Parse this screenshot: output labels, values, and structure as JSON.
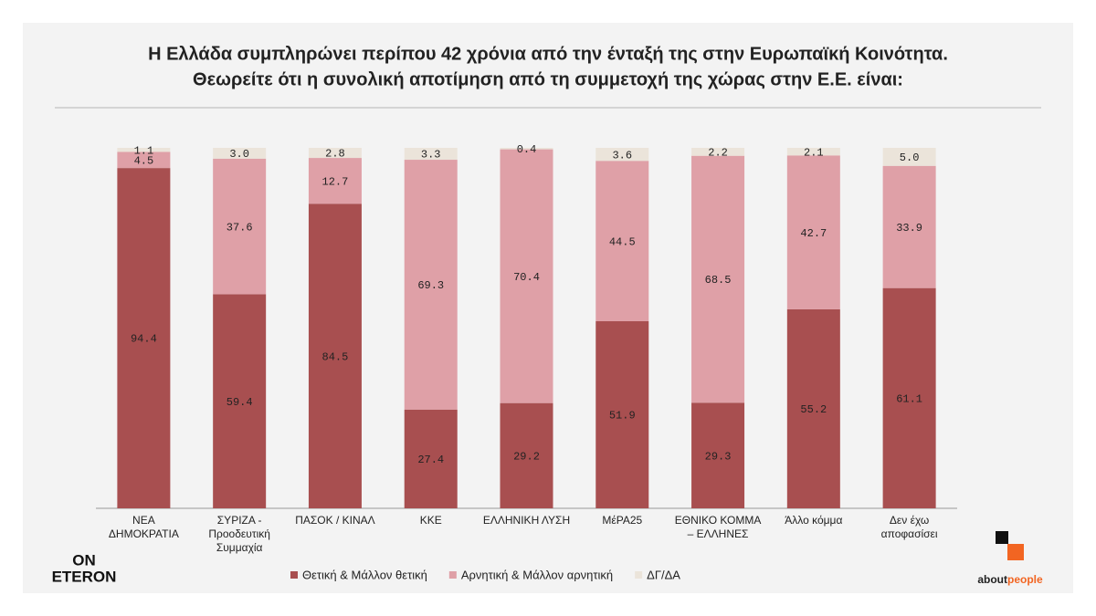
{
  "chart_data": {
    "type": "stacked_bar",
    "title": "Η Ελλάδα συμπληρώνει περίπου 42 χρόνια από την ένταξή της στην Ευρωπαϊκή Κοινότητα.",
    "subtitle": "Θεωρείτε ότι η συνολική αποτίμηση από τη συμμετοχή της χώρας στην Ε.Ε. είναι:",
    "categories": [
      "ΝΕΑ ΔΗΜΟΚΡΑΤΙΑ",
      "ΣΥΡΙΖΑ - Προοδευτική Συμμαχία",
      "ΠΑΣΟΚ / ΚΙΝΑΛ",
      "ΚΚΕ",
      "ΕΛΛΗΝΙΚΗ ΛΥΣΗ",
      "ΜέΡΑ25",
      "ΕΘΝΙΚΟ ΚΟΜΜΑ – ΕΛΛΗΝΕΣ",
      "Άλλο κόμμα",
      "Δεν έχω αποφασίσει"
    ],
    "series": [
      {
        "name": "Θετική & Μάλλον θετική",
        "color": "#a84f50",
        "values": [
          94.4,
          59.4,
          84.5,
          27.4,
          29.2,
          51.9,
          29.3,
          55.2,
          61.1
        ]
      },
      {
        "name": "Αρνητική & Μάλλον αρνητική",
        "color": "#dfa0a7",
        "values": [
          4.5,
          37.6,
          12.7,
          69.3,
          70.4,
          44.5,
          68.5,
          42.7,
          33.9
        ]
      },
      {
        "name": "ΔΓ/ΔΑ",
        "color": "#ebe4da",
        "values": [
          1.1,
          3,
          2.8,
          3.3,
          0.4,
          3.6,
          2.2,
          2.1,
          5
        ],
        "value_labels": [
          "1.1",
          "3.0",
          "2.8",
          "3.3",
          "0.4",
          "3.6",
          "2.2",
          "2.1",
          "5.0"
        ]
      }
    ],
    "ylim": [
      0,
      100
    ],
    "legend": "bottom"
  },
  "logos": {
    "left": [
      "ON",
      "ETERON"
    ],
    "right": [
      "about",
      "people"
    ]
  }
}
